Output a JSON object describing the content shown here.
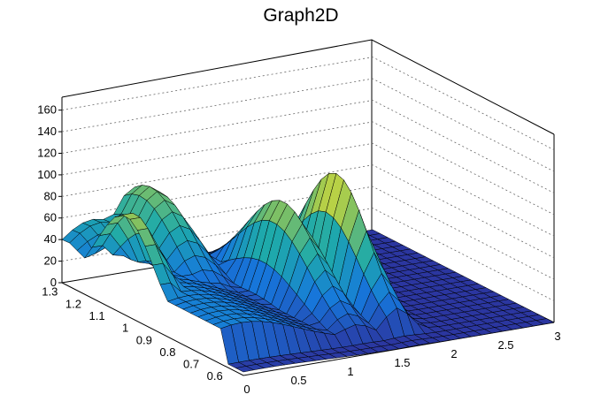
{
  "chart_data": {
    "type": "surface",
    "title": "Graph2D",
    "colormap": "viridis-like (blue to yellow)",
    "x_axis": {
      "range": [
        0,
        3
      ],
      "ticks": [
        "0",
        "0.5",
        "1",
        "1.5",
        "2",
        "2.5",
        "3"
      ]
    },
    "y_axis": {
      "range": [
        0.55,
        1.32
      ],
      "ticks": [
        "0.6",
        "0.7",
        "0.8",
        "0.9",
        "1",
        "1.1",
        "1.2",
        "1.3"
      ]
    },
    "z_axis": {
      "range": [
        0,
        172
      ],
      "ticks": [
        "0",
        "20",
        "40",
        "60",
        "80",
        "100",
        "120",
        "140",
        "160"
      ]
    },
    "grid": "dotted",
    "surface_description_only_visual": true
  }
}
